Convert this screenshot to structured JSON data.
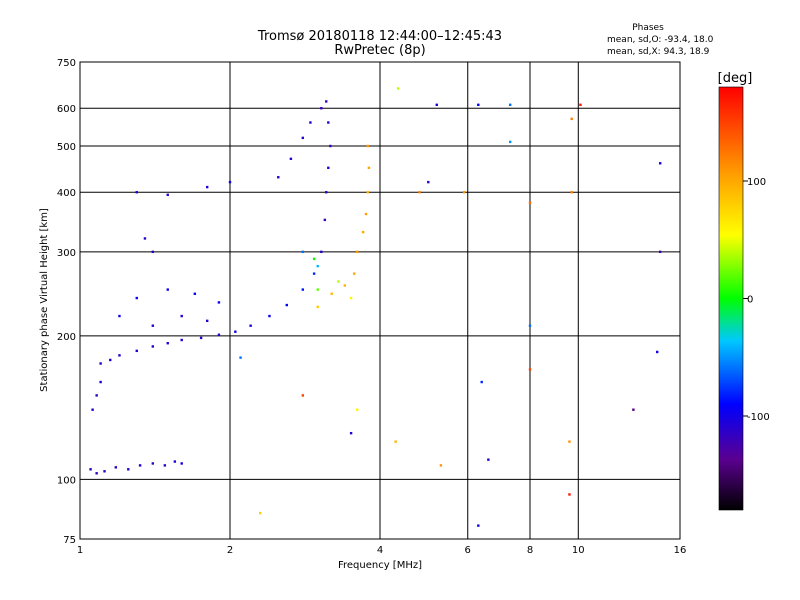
{
  "chart_data": {
    "type": "scatter",
    "title": "Tromsø 20180118 12:44:00–12:45:43",
    "subtitle": "RwPretec (8p)",
    "xlabel": "Frequency [MHz]",
    "ylabel": "Stationary phase Virtual Height [km]",
    "x_scale": "log",
    "y_scale": "log",
    "xlim": [
      1,
      16
    ],
    "ylim": [
      75,
      750
    ],
    "x_ticks": [
      1,
      2,
      4,
      6,
      8,
      10,
      16
    ],
    "x_tick_labels": [
      "1",
      "2",
      "4",
      "6",
      "8",
      "10",
      "16"
    ],
    "y_ticks": [
      75,
      100,
      200,
      300,
      400,
      500,
      600,
      750
    ],
    "y_tick_labels": [
      "75",
      "100",
      "200",
      "300",
      "400",
      "500",
      "600",
      "750"
    ],
    "grid": true,
    "stats": {
      "heading": "Phases",
      "o_line": "mean, sd,O: -93.4, 18.0",
      "x_line": "mean, sd,X:  94.3, 18.9"
    },
    "colorbar": {
      "label": "[deg]",
      "range": [
        -180,
        180
      ],
      "ticks": [
        100,
        0,
        -100
      ],
      "tick_labels": [
        "100",
        "0",
        "-100"
      ],
      "colormap": "rainbow"
    },
    "series": [
      {
        "points": [
          [
            1.05,
            105,
            -110
          ],
          [
            1.08,
            103,
            -115
          ],
          [
            1.12,
            104,
            -112
          ],
          [
            1.18,
            106,
            -108
          ],
          [
            1.25,
            105,
            -110
          ],
          [
            1.32,
            107,
            -105
          ],
          [
            1.4,
            108,
            -112
          ],
          [
            1.48,
            107,
            -110
          ],
          [
            1.55,
            109,
            -105
          ],
          [
            1.6,
            108,
            -100
          ],
          [
            1.06,
            140,
            -105
          ],
          [
            1.08,
            150,
            -110
          ],
          [
            1.1,
            160,
            -100
          ],
          [
            1.1,
            175,
            -110
          ],
          [
            1.15,
            178,
            -105
          ],
          [
            1.2,
            182,
            -110
          ],
          [
            1.3,
            186,
            -105
          ],
          [
            1.4,
            190,
            -110
          ],
          [
            1.5,
            193,
            -108
          ],
          [
            1.6,
            196,
            -105
          ],
          [
            1.75,
            198,
            -110
          ],
          [
            1.9,
            201,
            -105
          ],
          [
            2.05,
            204,
            -100
          ],
          [
            2.2,
            210,
            -100
          ],
          [
            2.4,
            220,
            -95
          ],
          [
            2.6,
            232,
            -90
          ],
          [
            2.8,
            250,
            -85
          ],
          [
            2.95,
            270,
            -80
          ],
          [
            3.05,
            300,
            -110
          ],
          [
            3.1,
            350,
            -120
          ],
          [
            3.12,
            400,
            -115
          ],
          [
            3.15,
            450,
            -110
          ],
          [
            3.18,
            500,
            -118
          ],
          [
            3.15,
            560,
            -110
          ],
          [
            3.12,
            620,
            -120
          ],
          [
            3.05,
            600,
            -115
          ],
          [
            2.9,
            560,
            -110
          ],
          [
            2.8,
            520,
            -112
          ],
          [
            2.65,
            470,
            -108
          ],
          [
            2.5,
            430,
            -105
          ],
          [
            2.0,
            420,
            -100
          ],
          [
            1.8,
            410,
            -105
          ],
          [
            1.5,
            395,
            -110
          ],
          [
            1.4,
            300,
            -105
          ],
          [
            1.35,
            320,
            -110
          ],
          [
            1.3,
            400,
            -112
          ],
          [
            1.2,
            220,
            -100
          ],
          [
            1.3,
            240,
            -95
          ],
          [
            1.5,
            250,
            -100
          ],
          [
            1.7,
            245,
            -90
          ],
          [
            1.9,
            235,
            -95
          ],
          [
            1.6,
            220,
            -105
          ],
          [
            1.8,
            215,
            -110
          ],
          [
            1.4,
            210,
            -110
          ],
          [
            3.0,
            230,
            80
          ],
          [
            3.2,
            245,
            90
          ],
          [
            3.4,
            255,
            95
          ],
          [
            3.55,
            270,
            100
          ],
          [
            3.6,
            300,
            110
          ],
          [
            3.7,
            330,
            100
          ],
          [
            3.75,
            360,
            105
          ],
          [
            3.78,
            400,
            95
          ],
          [
            3.8,
            450,
            100
          ],
          [
            3.78,
            500,
            110
          ],
          [
            3.5,
            240,
            60
          ],
          [
            3.3,
            260,
            40
          ],
          [
            3.0,
            250,
            20
          ],
          [
            2.95,
            290,
            0
          ],
          [
            3.0,
            280,
            -40
          ],
          [
            2.8,
            300,
            -60
          ],
          [
            4.35,
            660,
            40
          ],
          [
            5.2,
            610,
            -100
          ],
          [
            6.3,
            610,
            -90
          ],
          [
            7.3,
            610,
            -60
          ],
          [
            7.3,
            510,
            -50
          ],
          [
            4.8,
            400,
            120
          ],
          [
            5.0,
            420,
            -110
          ],
          [
            5.9,
            400,
            110
          ],
          [
            8.0,
            380,
            130
          ],
          [
            9.7,
            570,
            120
          ],
          [
            10.1,
            610,
            170
          ],
          [
            9.7,
            400,
            120
          ],
          [
            14.6,
            460,
            -100
          ],
          [
            14.6,
            300,
            -120
          ],
          [
            8.0,
            210,
            -60
          ],
          [
            6.4,
            160,
            -80
          ],
          [
            6.6,
            110,
            -110
          ],
          [
            8.0,
            170,
            150
          ],
          [
            9.6,
            120,
            110
          ],
          [
            9.6,
            93,
            170
          ],
          [
            12.9,
            140,
            -140
          ],
          [
            14.4,
            185,
            -100
          ],
          [
            2.3,
            85,
            80
          ],
          [
            3.5,
            125,
            -110
          ],
          [
            4.3,
            120,
            90
          ],
          [
            5.3,
            107,
            110
          ],
          [
            6.3,
            80,
            -100
          ],
          [
            2.1,
            180,
            -60
          ],
          [
            2.8,
            150,
            150
          ],
          [
            3.6,
            140,
            60
          ]
        ]
      }
    ]
  }
}
